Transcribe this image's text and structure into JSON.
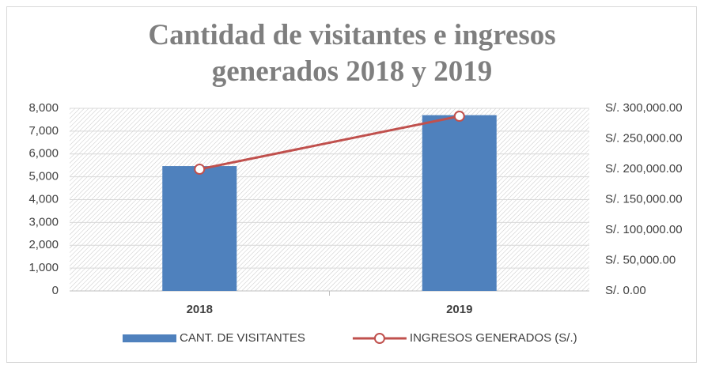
{
  "chart_data": {
    "type": "bar-line",
    "title": "Cantidad de visitantes e ingresos generados 2018 y 2019",
    "categories": [
      "2018",
      "2019"
    ],
    "series": [
      {
        "name": "CANT. DE VISITANTES",
        "color": "#4f81bd",
        "type": "bar",
        "axis": "y",
        "values": [
          5470,
          7700
        ]
      },
      {
        "name": "INGRESOS GENERADOS (S/.)",
        "color": "#c0504d",
        "type": "line",
        "axis": "y2",
        "values": [
          200000,
          287000
        ]
      }
    ],
    "ylim": [
      0,
      8000
    ],
    "yticks": [
      0,
      {
        "value": 1000,
        "label": "1,000"
      },
      {
        "value": 2000,
        "label": "2,000"
      },
      {
        "value": 3000,
        "label": "3,000"
      },
      {
        "value": 4000,
        "label": "4,000"
      },
      {
        "value": 5000,
        "label": "5,000"
      },
      {
        "value": 6000,
        "label": "6,000"
      },
      {
        "value": 7000,
        "label": "7,000"
      },
      {
        "value": 8000,
        "label": "8,000"
      }
    ],
    "y2lim": [
      0,
      300000
    ],
    "y2ticks": [
      {
        "value": 0,
        "label": "S/. 0.00"
      },
      {
        "value": 50000,
        "label": "S/. 50,000.00"
      },
      {
        "value": 100000,
        "label": "S/. 100,000.00"
      },
      {
        "value": 150000,
        "label": "S/. 150,000.00"
      },
      {
        "value": 200000,
        "label": "S/. 200,000.00"
      },
      {
        "value": 250000,
        "label": "S/. 250,000.00"
      },
      {
        "value": 300000,
        "label": "S/. 300,000.00"
      }
    ],
    "grid": true,
    "legend": "bottom"
  }
}
